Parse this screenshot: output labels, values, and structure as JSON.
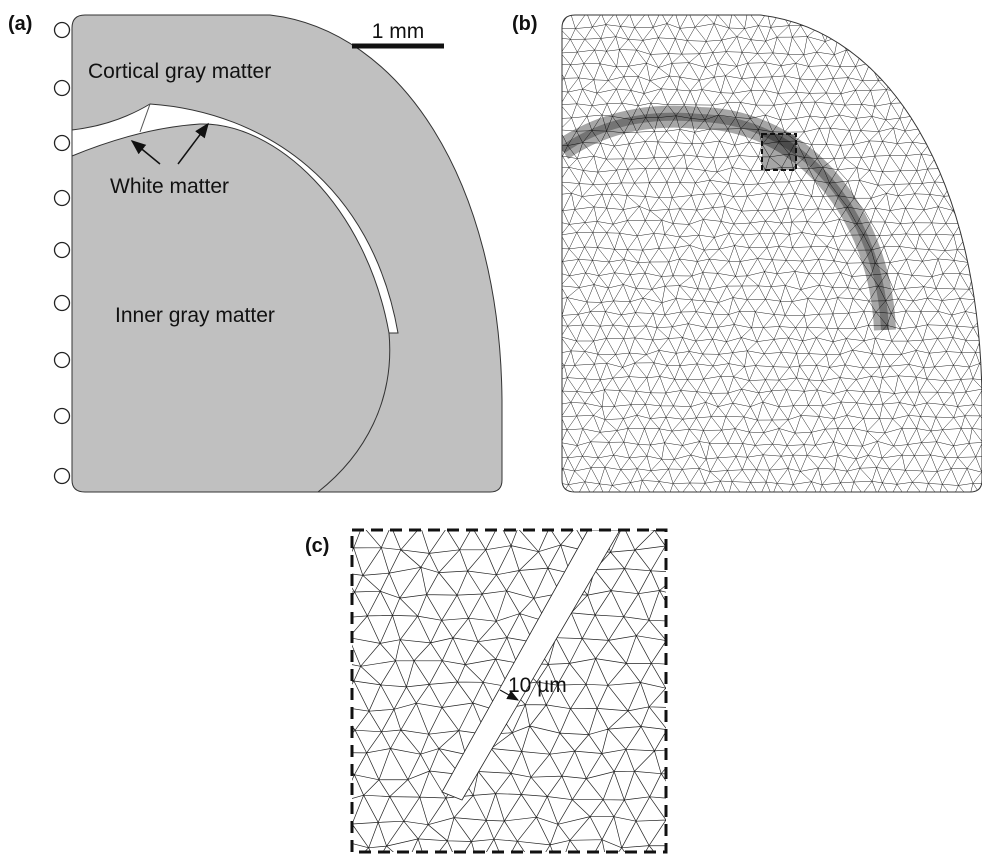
{
  "panels": [
    {
      "label": "(a)",
      "scale_bar": "1 mm",
      "annotations": [
        "Cortical gray matter",
        "White matter",
        "Inner gray matter"
      ]
    },
    {
      "label": "(b)"
    },
    {
      "label": "(c)",
      "annotation": "10 µm"
    }
  ]
}
